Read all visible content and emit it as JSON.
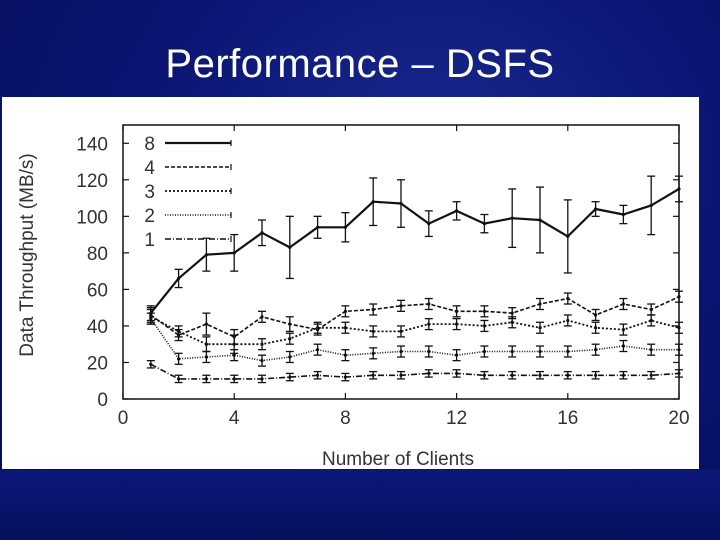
{
  "slide": {
    "title": "Performance – DSFS"
  },
  "chart_data": {
    "type": "line",
    "xlabel": "Number of Clients",
    "ylabel": "Data Throughput (MB/s)",
    "xlim": [
      0,
      20
    ],
    "ylim": [
      0,
      150
    ],
    "xticks": [
      0,
      4,
      8,
      12,
      16,
      20
    ],
    "yticks": [
      0,
      20,
      40,
      60,
      80,
      100,
      120,
      140
    ],
    "grid": false,
    "legend_position": "top-left",
    "series": [
      {
        "name": "8",
        "x": [
          1,
          2,
          3,
          4,
          5,
          6,
          7,
          8,
          9,
          10,
          11,
          12,
          13,
          14,
          15,
          16,
          17,
          18,
          19,
          20
        ],
        "values": [
          47,
          66,
          79,
          80,
          91,
          83,
          94,
          94,
          108,
          107,
          96,
          103,
          96,
          99,
          98,
          89,
          104,
          101,
          106,
          115
        ],
        "err": [
          4,
          5,
          9,
          10,
          7,
          17,
          6,
          8,
          13,
          13,
          7,
          5,
          5,
          16,
          18,
          20,
          4,
          5,
          16,
          7
        ]
      },
      {
        "name": "4",
        "x": [
          1,
          2,
          3,
          4,
          5,
          6,
          7,
          8,
          9,
          10,
          11,
          12,
          13,
          14,
          15,
          16,
          17,
          18,
          19,
          20
        ],
        "values": [
          46,
          35,
          41,
          34,
          45,
          41,
          38,
          48,
          49,
          51,
          52,
          48,
          48,
          47,
          52,
          55,
          46,
          52,
          49,
          56
        ],
        "err": [
          4,
          3,
          6,
          4,
          3,
          4,
          3,
          3,
          3,
          3,
          3,
          3,
          3,
          3,
          3,
          3,
          3,
          3,
          3,
          3
        ]
      },
      {
        "name": "3",
        "x": [
          1,
          2,
          3,
          4,
          5,
          6,
          7,
          8,
          9,
          10,
          11,
          12,
          13,
          14,
          15,
          16,
          17,
          18,
          19,
          20
        ],
        "values": [
          45,
          37,
          30,
          30,
          30,
          33,
          39,
          39,
          37,
          37,
          41,
          41,
          40,
          42,
          39,
          43,
          39,
          38,
          43,
          39
        ],
        "err": [
          4,
          3,
          4,
          5,
          3,
          3,
          3,
          3,
          3,
          3,
          3,
          3,
          3,
          3,
          3,
          3,
          3,
          3,
          3,
          3
        ]
      },
      {
        "name": "2",
        "x": [
          1,
          2,
          3,
          4,
          5,
          6,
          7,
          8,
          9,
          10,
          11,
          12,
          13,
          14,
          15,
          16,
          17,
          18,
          19,
          20
        ],
        "values": [
          44,
          22,
          23,
          24,
          21,
          23,
          27,
          24,
          25,
          26,
          26,
          24,
          26,
          26,
          26,
          26,
          27,
          29,
          27,
          27
        ],
        "err": [
          3,
          3,
          3,
          3,
          3,
          3,
          3,
          3,
          3,
          3,
          3,
          3,
          3,
          3,
          3,
          3,
          3,
          3,
          3,
          3
        ]
      },
      {
        "name": "1",
        "x": [
          1,
          2,
          3,
          4,
          5,
          6,
          7,
          8,
          9,
          10,
          11,
          12,
          13,
          14,
          15,
          16,
          17,
          18,
          19,
          20
        ],
        "values": [
          19,
          11,
          11,
          11,
          11,
          12,
          13,
          12,
          13,
          13,
          14,
          14,
          13,
          13,
          13,
          13,
          13,
          13,
          13,
          14
        ],
        "err": [
          2,
          2,
          2,
          2,
          2,
          2,
          2,
          2,
          2,
          2,
          2,
          2,
          2,
          2,
          2,
          2,
          2,
          2,
          2,
          2
        ]
      }
    ]
  },
  "style": {
    "background": "#0a1670",
    "line_color": "#111111",
    "dashes": [
      "",
      "4,2",
      "2,2",
      "1,1.5",
      "6,2,1,2"
    ],
    "widths": [
      2.2,
      1.6,
      1.8,
      1.6,
      1.6
    ]
  }
}
